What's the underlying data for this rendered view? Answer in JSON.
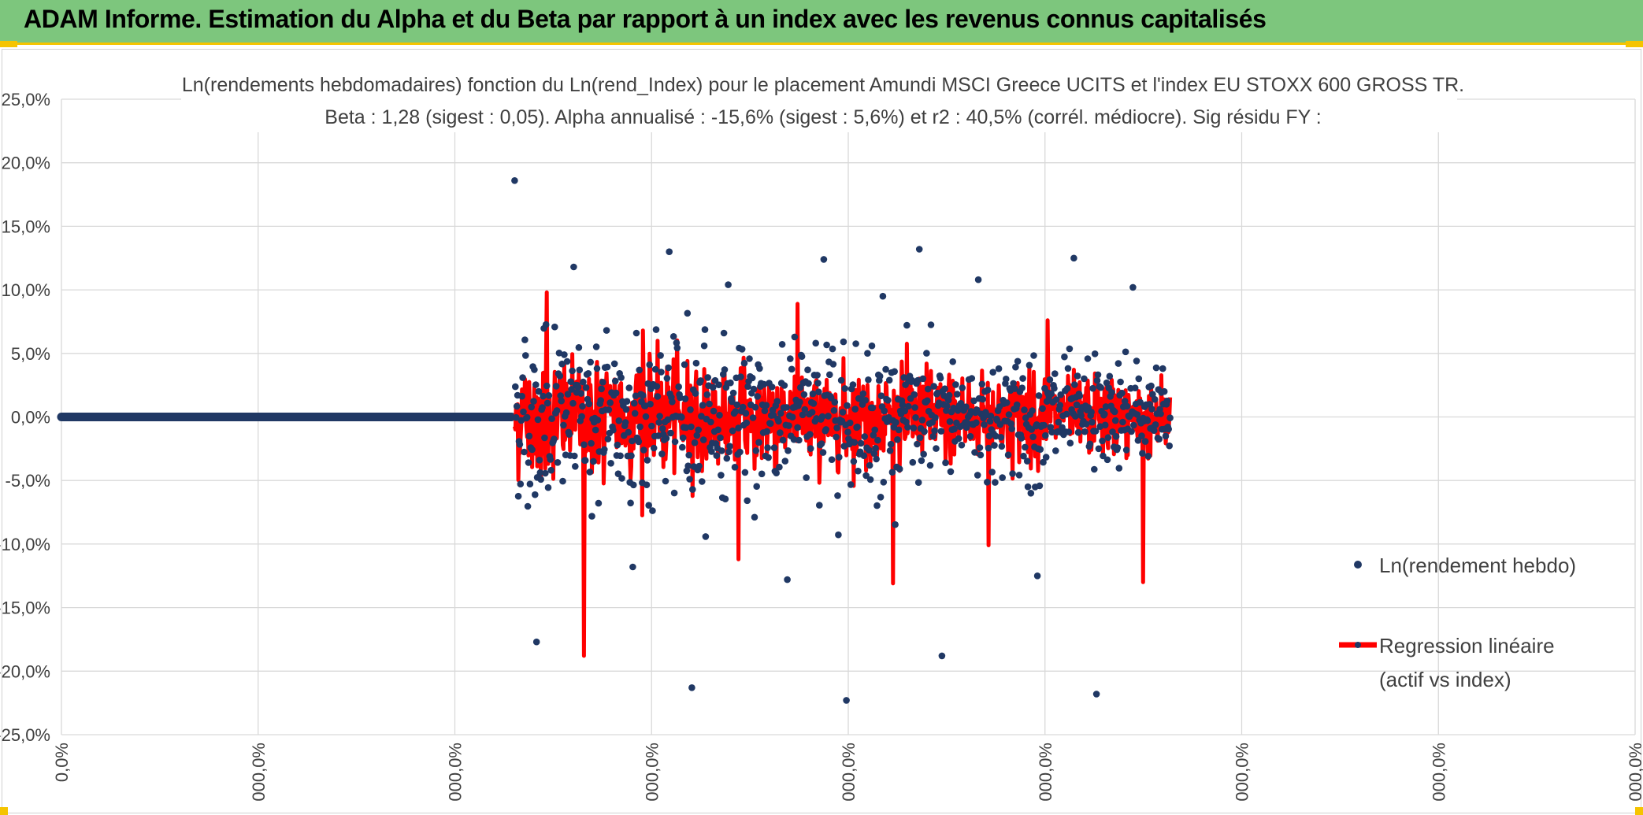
{
  "header": {
    "title": "ADAM Informe. Estimation du Alpha et du Beta par rapport à un index avec les revenus connus capitalisés"
  },
  "colors": {
    "header_bg": "#7dc67d",
    "accent_yellow": "#f5c400",
    "points": "#203864",
    "regression": "#ff0000",
    "grid": "#d9d9d9"
  },
  "chart_data": {
    "type": "scatter",
    "title": "Ln(rendements hebdomadaires) fonction du Ln(rend_Index) pour le placement Amundi MSCI Greece UCITS  et l'index EU STOXX 600 GROSS TR.",
    "subtitle": "Beta : 1,28 (sigest : 0,05). Alpha annualisé : -15,6% (sigest : 5,6%) et r2 : 40,5% (corrél. médiocre). Sig résidu FY :",
    "y_ticks": [
      "25,0%",
      "20,0%",
      "15,0%",
      "10,0%",
      "5,0%",
      "0,0%",
      "-5,0%",
      "-10,0%",
      "-15,0%",
      "-20,0%",
      "-25,0%"
    ],
    "ylim": [
      -25,
      25
    ],
    "x_ticks": [
      "0,0%",
      "000,0%",
      "000,0%",
      "000,0%",
      "000,0%",
      "000,0%",
      "000,0%",
      "000,0%",
      "000,0%"
    ],
    "grid": true,
    "legend_position": "right",
    "series": [
      {
        "name": "Ln(rendement hebdo)",
        "style": "points",
        "zero_segment_until_index": 0.286,
        "approx_point_count": 900,
        "notable_values": [
          18.6,
          13.2,
          13.0,
          12.5,
          12.4,
          11.8,
          10.8,
          10.4,
          10.2,
          9.5,
          -11.8,
          -12.5,
          -12.8,
          -17.7,
          -18.8,
          -21.3,
          -21.8,
          -22.3
        ]
      },
      {
        "name": "Regression linéaire\n(actif vs index)",
        "style": "line",
        "notable_values": [
          9.8,
          8.9,
          7.6,
          6.8,
          -13.1,
          -13.0,
          -11.2,
          -10.1,
          -18.8
        ]
      }
    ],
    "legend": [
      "Ln(rendement hebdo)",
      "Regression linéaire",
      "(actif vs index)"
    ]
  }
}
